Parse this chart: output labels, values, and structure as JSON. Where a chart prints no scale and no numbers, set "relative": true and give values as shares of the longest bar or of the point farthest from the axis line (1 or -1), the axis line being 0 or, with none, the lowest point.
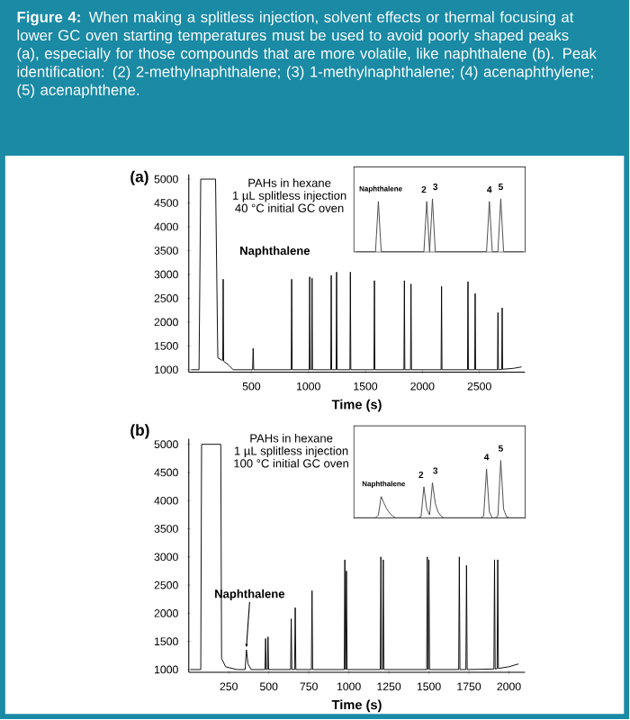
{
  "chart_data": [
    {
      "type": "line",
      "title": "**Figure 4:** When making a splitless injection, solvent effects or thermal focusing at lower GC oven starting temperatures must be used to avoid poorly shaped peaks (a), especially for those compounds that are more volatile, like naphthalene (b). Peak identification: (2) 2-methylnaphthalene; (3) 1-methylnaphthalene; (4) acenaphthylene; (5) acenaphthene.",
      "xlabel": "Time (s)",
      "color": "#000000",
      "xlim": [
        -50,
        2900
      ],
      "ylim": [
        950,
        5100
      ],
      "xticks": [
        500,
        1000,
        1500,
        2000,
        2500
      ],
      "yticks": [
        1000,
        1500,
        2000,
        2500,
        3000,
        3500,
        4000,
        4500,
        5000
      ],
      "annotations": [
        "(a)",
        "PAHs in hexane",
        "1 µL splitless injection",
        "40 °C initial GC oven",
        "Naphthalene"
      ],
      "x": [
        -30,
        40,
        55,
        185,
        200,
        205,
        240,
        248,
        252,
        256,
        300,
        340,
        510,
        515,
        520,
        849,
        853,
        857,
        1007,
        1011,
        1015,
        1028,
        1032,
        1036,
        1196,
        1200,
        1204,
        1243,
        1247,
        1251,
        1364,
        1368,
        1372,
        1575,
        1579,
        1583,
        1838,
        1842,
        1846,
        1896,
        1900,
        1904,
        2164,
        2168,
        2172,
        2396,
        2400,
        2404,
        2459,
        2463,
        2467,
        2659,
        2663,
        2667,
        2696,
        2700,
        2704,
        2800,
        2870
      ],
      "values": [
        1000,
        1000,
        5000,
        5000,
        2150,
        1250,
        1200,
        1200,
        2900,
        1180,
        1100,
        1000,
        1000,
        1450,
        1000,
        1000,
        2900,
        1000,
        1000,
        2950,
        1000,
        1000,
        2920,
        1000,
        1000,
        2980,
        1000,
        1000,
        3050,
        1000,
        1000,
        3050,
        1000,
        1000,
        2870,
        1000,
        1000,
        2870,
        1000,
        1000,
        2800,
        1000,
        1000,
        2750,
        1000,
        1000,
        2850,
        1000,
        1000,
        2600,
        1000,
        1000,
        2200,
        1000,
        1005,
        2300,
        1010,
        1030,
        1060
      ]
    },
    {
      "type": "line",
      "relative": true,
      "tick_labels": false,
      "color": "#444444",
      "annotations": [
        "Naphthalene",
        "2",
        "3",
        "4",
        "5"
      ],
      "categories": [
        null,
        null,
        null,
        null,
        null,
        null,
        null,
        null,
        null,
        null,
        null,
        null,
        null,
        null,
        null,
        null,
        null,
        null,
        null,
        null,
        null,
        null,
        null,
        null,
        null,
        null,
        null,
        null,
        null,
        null,
        null,
        null,
        null,
        null,
        null,
        null,
        null,
        null,
        null,
        null,
        null,
        null,
        null,
        null,
        null,
        null,
        null,
        null,
        null,
        null,
        null,
        null,
        null,
        null,
        null,
        null,
        null,
        null,
        null,
        null
      ],
      "values": [
        0,
        0,
        0,
        0,
        0,
        0,
        0,
        0,
        0.95,
        0,
        0,
        0,
        0,
        0,
        0,
        0,
        0,
        0,
        0,
        0,
        0,
        0,
        0,
        0,
        0,
        0.95,
        0,
        1,
        0,
        0,
        0,
        0,
        0,
        0,
        0,
        0,
        0,
        0,
        0,
        0,
        0,
        0,
        0,
        0,
        0,
        0,
        0,
        0.95,
        0,
        0,
        0,
        1,
        0,
        0,
        0,
        0,
        0,
        0,
        0,
        0
      ]
    },
    {
      "type": "line",
      "xlabel": "Time (s)",
      "color": "#000000",
      "xlim": [
        0,
        2100
      ],
      "ylim": [
        950,
        5100
      ],
      "xticks": [
        250,
        500,
        750,
        1000,
        1250,
        1500,
        1750,
        2000
      ],
      "yticks": [
        1000,
        1500,
        2000,
        2500,
        3000,
        3500,
        4000,
        4500,
        5000
      ],
      "annotations": [
        "(b)",
        "PAHs in hexane",
        "1 µL splitless injection",
        "100 °C initial GC oven",
        {
          "text": "Naphthalene",
          "x": 360,
          "y": 1350
        }
      ],
      "x": [
        10,
        75,
        80,
        200,
        205,
        230,
        300,
        352,
        360,
        370,
        390,
        476,
        480,
        484,
        491,
        495,
        499,
        636,
        640,
        644,
        661,
        665,
        669,
        766,
        770,
        774,
        971,
        975,
        979,
        981,
        985,
        989,
        1196,
        1200,
        1204,
        1211,
        1215,
        1219,
        1486,
        1490,
        1494,
        1496,
        1500,
        1504,
        1686,
        1690,
        1694,
        1731,
        1735,
        1739,
        1906,
        1910,
        1914,
        1926,
        1930,
        1934,
        2000,
        2060
      ],
      "values": [
        1000,
        1000,
        5000,
        5000,
        1200,
        1050,
        1000,
        1000,
        1350,
        1100,
        1000,
        1000,
        1550,
        1000,
        1000,
        1580,
        1000,
        1000,
        1900,
        1000,
        1000,
        2100,
        1000,
        1000,
        2400,
        1000,
        1000,
        2950,
        1000,
        1000,
        2750,
        1000,
        1000,
        3000,
        1000,
        1000,
        2950,
        1000,
        1000,
        3000,
        1000,
        1000,
        2950,
        1000,
        1000,
        3000,
        1000,
        1000,
        2850,
        1000,
        1010,
        2950,
        1010,
        1015,
        2950,
        1020,
        1050,
        1100
      ]
    },
    {
      "type": "line",
      "relative": true,
      "tick_labels": false,
      "color": "#444444",
      "annotations": [
        "Naphthalene",
        "2",
        "3",
        "4",
        "5"
      ],
      "categories": [
        null,
        null,
        null,
        null,
        null,
        null,
        null,
        null,
        null,
        null,
        null,
        null,
        null,
        null,
        null,
        null,
        null,
        null,
        null,
        null,
        null,
        null,
        null,
        null,
        null,
        null,
        null,
        null,
        null,
        null,
        null,
        null,
        null,
        null,
        null,
        null,
        null,
        null,
        null,
        null,
        null,
        null,
        null,
        null,
        null,
        null,
        null,
        null,
        null,
        null,
        null,
        null,
        null,
        null,
        null,
        null,
        null,
        null,
        null,
        null
      ],
      "values": [
        0,
        0,
        0,
        0,
        0,
        0,
        0,
        0,
        0.05,
        0.37,
        0.25,
        0.15,
        0.08,
        0.03,
        0,
        0,
        0,
        0,
        0,
        0,
        0,
        0,
        0,
        0.02,
        0.54,
        0.15,
        0.05,
        0.61,
        0.25,
        0.1,
        0.03,
        0,
        0,
        0,
        0,
        0,
        0,
        0,
        0,
        0,
        0,
        0,
        0,
        0,
        0,
        0.03,
        0.85,
        0.1,
        0,
        0,
        0.03,
        1,
        0.15,
        0.02,
        0,
        0,
        0,
        0,
        0,
        0
      ]
    }
  ]
}
